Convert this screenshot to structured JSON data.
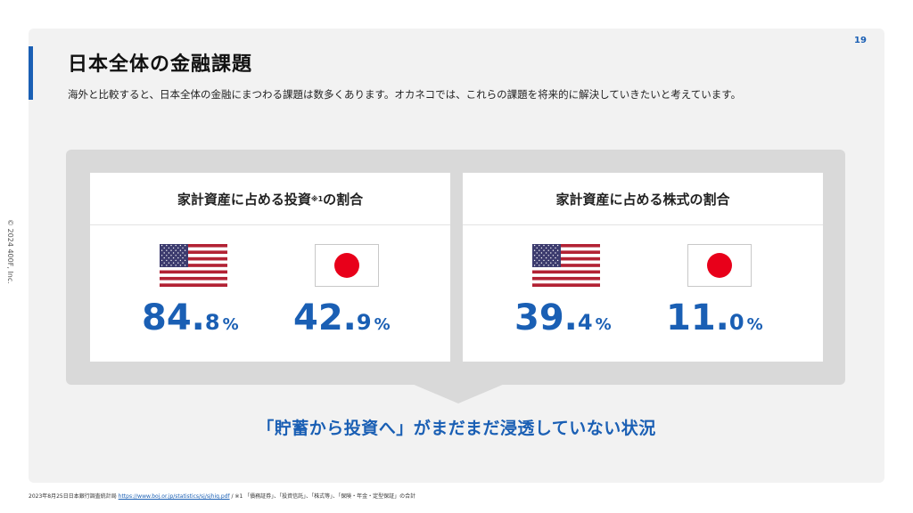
{
  "page_number": "19",
  "title": "日本全体の金融課題",
  "subtitle": "海外と比較すると、日本全体の金融にまつわる課題は数多くあります。オカネコでは、これらの課題を将来的に解決していきたいと考えています。",
  "copyright": "© 2024 400F, Inc.",
  "cards": [
    {
      "heading_main": "家計資産に占める投資",
      "heading_note": "※1",
      "heading_tail": "の割合",
      "us_flag": "us-flag-icon",
      "jp_flag": "jp-flag-icon",
      "us_value_int": "84.",
      "us_value_dec": "8",
      "jp_value_int": "42.",
      "jp_value_dec": "9",
      "percent": "%"
    },
    {
      "heading_main": "家計資産に占める株式の割合",
      "us_flag": "us-flag-icon",
      "jp_flag": "jp-flag-icon",
      "us_value_int": "39.",
      "us_value_dec": "4",
      "jp_value_int": "11.",
      "jp_value_dec": "0",
      "percent": "%"
    }
  ],
  "conclusion": "「貯蓄から投資へ」がまだまだ浸透していない状況",
  "footnote_prefix": "2023年8月25日日本銀行調査統計局",
  "footnote_link": "https://www.boj.or.jp/statistics/sj/sjhiq.pdf",
  "footnote_suffix": " / ※1 「債務証券」、「投資信託」、「株式等」、「保険・年金・定型保証」の合計",
  "colors": {
    "accent": "#1a5fb4",
    "panel": "#d9d9d9",
    "jp_red": "#e8001a"
  }
}
